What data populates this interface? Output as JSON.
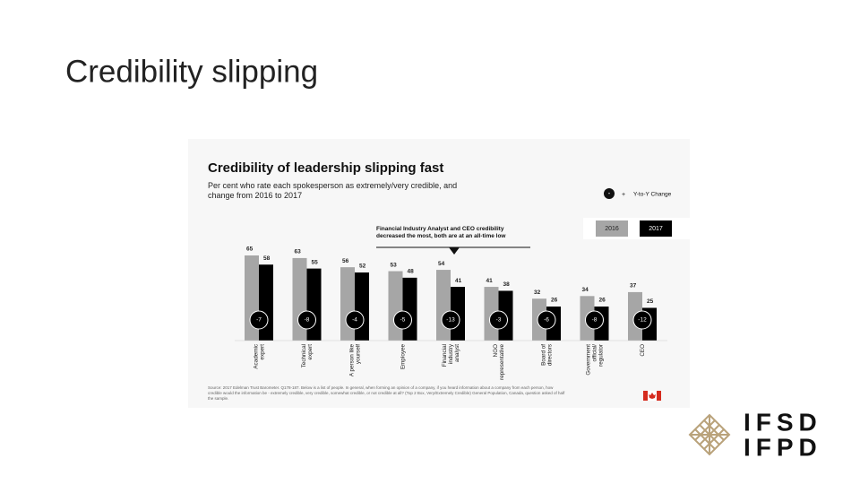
{
  "slide": {
    "title": "Credibility slipping",
    "logo_top": "IFSD",
    "logo_bottom": "IFPD"
  },
  "chart_data": {
    "type": "bar",
    "title": "Credibility of leadership slipping fast",
    "subtitle": "Per cent who rate each spokesperson as extremely/very credible, and change from 2016 to 2017",
    "annotation": "Financial Industry Analyst and CEO credibility decreased the most, both are at an all-time low",
    "change_legend": {
      "minus": "-",
      "plus": "+",
      "label": "Y-to-Y Change"
    },
    "categories": [
      "Academic\nexpert",
      "Technical\nexpert",
      "A person like\nyourself",
      "Employee",
      "Financial\nindustry\nanalyst",
      "NGO\nrepresentative",
      "Board of\ndirectors",
      "Government\nofficial/\nregulator",
      "CEO"
    ],
    "series": [
      {
        "name": "2016",
        "color": "#a6a6a6",
        "values": [
          65,
          63,
          56,
          53,
          54,
          41,
          32,
          34,
          37
        ]
      },
      {
        "name": "2017",
        "color": "#000000",
        "values": [
          58,
          55,
          52,
          48,
          41,
          38,
          26,
          26,
          25
        ]
      }
    ],
    "changes": [
      -7,
      -8,
      -4,
      -5,
      -13,
      -3,
      -6,
      -8,
      -12
    ],
    "source": "Source: 2017 Edelman Trust Barometer. Q178-187. Below is a list of people. In general, when forming an opinion of a company, if you heard information about a company from each person, how credible would the information be - extremely credible, very credible, somewhat credible, or not credible at all? (Top 2 Box, Very/Extremely Credible) General Population, Canada, question asked of half the sample."
  }
}
